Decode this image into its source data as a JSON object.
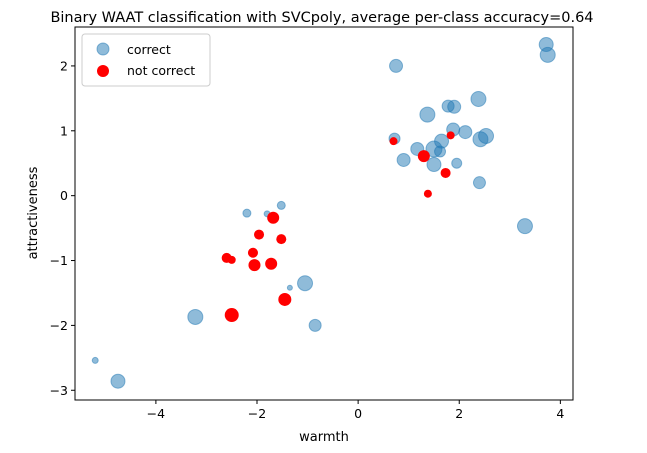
{
  "chart_data": {
    "type": "scatter",
    "title": "Binary WAAT classification with SVCpoly, average per-class accuracy=0.64",
    "xlabel": "warmth",
    "ylabel": "attractiveness",
    "xlim": [
      -5.6,
      4.25
    ],
    "ylim": [
      -3.15,
      2.6
    ],
    "xticks": [
      -4,
      -2,
      0,
      2,
      4
    ],
    "yticks": [
      -3,
      -2,
      -1,
      0,
      1,
      2
    ],
    "legend_position": "top-left",
    "colors": {
      "correct": "#1f77b4",
      "not_correct": "#ff0000"
    },
    "series": [
      {
        "name": "correct",
        "points": [
          {
            "x": -5.2,
            "y": -2.54,
            "s": 3
          },
          {
            "x": -4.75,
            "y": -2.86,
            "s": 7
          },
          {
            "x": -3.22,
            "y": -1.87,
            "s": 7.5
          },
          {
            "x": -2.2,
            "y": -0.27,
            "s": 4
          },
          {
            "x": -1.8,
            "y": -0.28,
            "s": 3
          },
          {
            "x": -1.52,
            "y": -0.15,
            "s": 4
          },
          {
            "x": -1.35,
            "y": -1.42,
            "s": 2.5
          },
          {
            "x": -1.05,
            "y": -1.35,
            "s": 7.5
          },
          {
            "x": -0.85,
            "y": -2.0,
            "s": 6
          },
          {
            "x": 0.75,
            "y": 2.0,
            "s": 6.5
          },
          {
            "x": 0.72,
            "y": 0.88,
            "s": 5.5
          },
          {
            "x": 0.9,
            "y": 0.55,
            "s": 6.5
          },
          {
            "x": 1.17,
            "y": 0.72,
            "s": 6.5
          },
          {
            "x": 1.37,
            "y": 1.25,
            "s": 7.5
          },
          {
            "x": 1.5,
            "y": 0.72,
            "s": 8
          },
          {
            "x": 1.5,
            "y": 0.48,
            "s": 7
          },
          {
            "x": 1.65,
            "y": 0.84,
            "s": 7
          },
          {
            "x": 1.62,
            "y": 0.68,
            "s": 5.5
          },
          {
            "x": 1.78,
            "y": 1.38,
            "s": 6
          },
          {
            "x": 1.9,
            "y": 1.37,
            "s": 6.5
          },
          {
            "x": 1.88,
            "y": 1.02,
            "s": 6.5
          },
          {
            "x": 1.95,
            "y": 0.5,
            "s": 5
          },
          {
            "x": 2.12,
            "y": 0.98,
            "s": 6.5
          },
          {
            "x": 2.38,
            "y": 1.49,
            "s": 7.5
          },
          {
            "x": 2.42,
            "y": 0.87,
            "s": 7.5
          },
          {
            "x": 2.53,
            "y": 0.92,
            "s": 7.5
          },
          {
            "x": 2.4,
            "y": 0.2,
            "s": 6
          },
          {
            "x": 3.3,
            "y": -0.47,
            "s": 7.5
          },
          {
            "x": 3.72,
            "y": 2.33,
            "s": 7
          },
          {
            "x": 3.75,
            "y": 2.17,
            "s": 7.5
          }
        ]
      },
      {
        "name": "not correct",
        "points": [
          {
            "x": -2.6,
            "y": -0.96,
            "s": 5
          },
          {
            "x": -2.5,
            "y": -0.99,
            "s": 4
          },
          {
            "x": -2.5,
            "y": -1.84,
            "s": 7
          },
          {
            "x": -2.08,
            "y": -0.88,
            "s": 5
          },
          {
            "x": -2.05,
            "y": -1.07,
            "s": 6
          },
          {
            "x": -1.96,
            "y": -0.6,
            "s": 5
          },
          {
            "x": -1.72,
            "y": -1.05,
            "s": 6
          },
          {
            "x": -1.68,
            "y": -0.34,
            "s": 6
          },
          {
            "x": -1.52,
            "y": -0.67,
            "s": 5
          },
          {
            "x": -1.45,
            "y": -1.6,
            "s": 6.5
          },
          {
            "x": 0.7,
            "y": 0.84,
            "s": 4
          },
          {
            "x": 1.3,
            "y": 0.61,
            "s": 6
          },
          {
            "x": 1.38,
            "y": 0.03,
            "s": 4
          },
          {
            "x": 1.73,
            "y": 0.35,
            "s": 5
          },
          {
            "x": 1.83,
            "y": 0.93,
            "s": 4
          }
        ]
      }
    ]
  }
}
